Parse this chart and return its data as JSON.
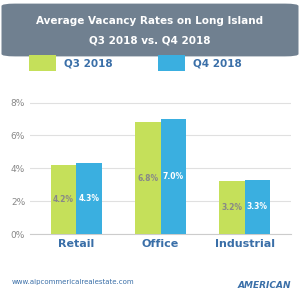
{
  "title_line1": "Average Vacancy Rates on Long Island",
  "title_line2": "Q3 2018 vs. Q4 2018",
  "categories": [
    "Retail",
    "Office",
    "Industrial"
  ],
  "q3_values": [
    4.2,
    6.8,
    3.2
  ],
  "q4_values": [
    4.3,
    7.0,
    3.3
  ],
  "q3_label": "Q3 2018",
  "q4_label": "Q4 2018",
  "q3_color": "#c5e05a",
  "q4_color": "#3aafe0",
  "title_bg_color": "#708090",
  "title_text_color": "#ffffff",
  "bg_color": "#ffffff",
  "ylabel_ticks": [
    "0%",
    "2%",
    "4%",
    "6%",
    "8%"
  ],
  "ytick_vals": [
    0,
    2,
    4,
    6,
    8
  ],
  "ylim": [
    0,
    9.5
  ],
  "bar_label_color_q3": "#888888",
  "bar_label_color_q4": "#ffffff",
  "grid_color": "#e0e0e0",
  "footer_text": "www.aipcommericalrealestate.com",
  "cat_label_color": "#3a6fa8",
  "cat_label_fontsize": 8,
  "bar_width": 0.3,
  "tick_color": "#3a6fa8",
  "ytick_color": "#888888"
}
